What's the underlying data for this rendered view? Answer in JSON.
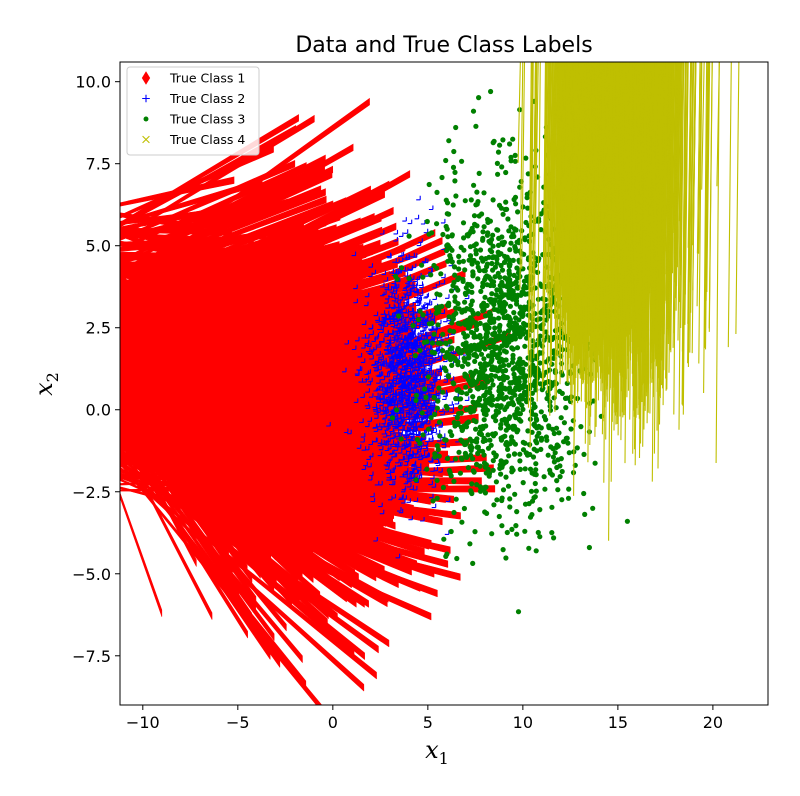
{
  "chart_data": {
    "type": "scatter",
    "title": "Data and True Class Labels",
    "xlabel": {
      "base": "x",
      "sub": "1"
    },
    "ylabel": {
      "base": "x",
      "sub": "2"
    },
    "xlim": [
      -11.2,
      22.9
    ],
    "ylim": [
      -9.0,
      10.6
    ],
    "xticks": [
      -10,
      -5,
      0,
      5,
      10,
      15,
      20
    ],
    "yticks": [
      -7.5,
      -5.0,
      -2.5,
      0.0,
      2.5,
      5.0,
      7.5,
      10.0
    ],
    "xtick_labels": [
      "−10",
      "−5",
      "0",
      "5",
      "10",
      "15",
      "20"
    ],
    "ytick_labels": [
      "−7.5",
      "−5.0",
      "−2.5",
      "0.0",
      "2.5",
      "5.0",
      "7.5",
      "10.0"
    ],
    "grid": false,
    "legend_position": "upper-left",
    "series": [
      {
        "name": "True Class 1",
        "marker": "diamond",
        "color": "#ff0000",
        "center": [
          0,
          0
        ],
        "spread": [
          2.9,
          2.8
        ],
        "count": 1500,
        "outliers": [
          [
            -9.8,
            -0.9
          ],
          [
            -9.0,
            -6.3
          ],
          [
            -1.8,
            8.8
          ],
          [
            2.3,
            -8.2
          ],
          [
            -3.3,
            -7.6
          ],
          [
            -1.6,
            -7.7
          ],
          [
            5.5,
            -5.7
          ],
          [
            -5.2,
            6.9
          ],
          [
            6.7,
            -5.2
          ],
          [
            -2.0,
            7.4
          ]
        ]
      },
      {
        "name": "True Class 2",
        "marker": "plus",
        "color": "#0000ff",
        "center": [
          4.0,
          1.0
        ],
        "spread": [
          1.0,
          1.7
        ],
        "count": 1500,
        "outliers": [
          [
            4.6,
            6.4
          ],
          [
            1.2,
            4.7
          ],
          [
            6.1,
            -3.8
          ],
          [
            2.2,
            -2.8
          ]
        ]
      },
      {
        "name": "True Class 3",
        "marker": "point",
        "color": "#008000",
        "center": [
          9.0,
          2.0
        ],
        "spread": [
          2.0,
          2.4
        ],
        "count": 1500,
        "outliers": [
          [
            8.3,
            9.7
          ],
          [
            7.4,
            9.1
          ],
          [
            10.6,
            9.4
          ],
          [
            6.1,
            8.2
          ],
          [
            12.4,
            -2.7
          ],
          [
            15.5,
            -3.4
          ],
          [
            6.0,
            -4.4
          ],
          [
            13.5,
            -4.2
          ],
          [
            10.7,
            -4.3
          ],
          [
            9.3,
            8.1
          ]
        ]
      },
      {
        "name": "True Class 4",
        "marker": "x",
        "color": "#bfbf00",
        "center": [
          15.0,
          3.0
        ],
        "spread": [
          1.7,
          1.8
        ],
        "count": 1500,
        "outliers": [
          [
            21.4,
            2.2
          ],
          [
            20.4,
            6.7
          ],
          [
            15.6,
            8.3
          ],
          [
            17.3,
            7.8
          ],
          [
            14.7,
            -4.1
          ],
          [
            17.0,
            -2.3
          ],
          [
            17.3,
            -1.9
          ],
          [
            19.7,
            0.4
          ],
          [
            19.6,
            6.6
          ],
          [
            21.0,
            1.8
          ]
        ]
      }
    ]
  }
}
